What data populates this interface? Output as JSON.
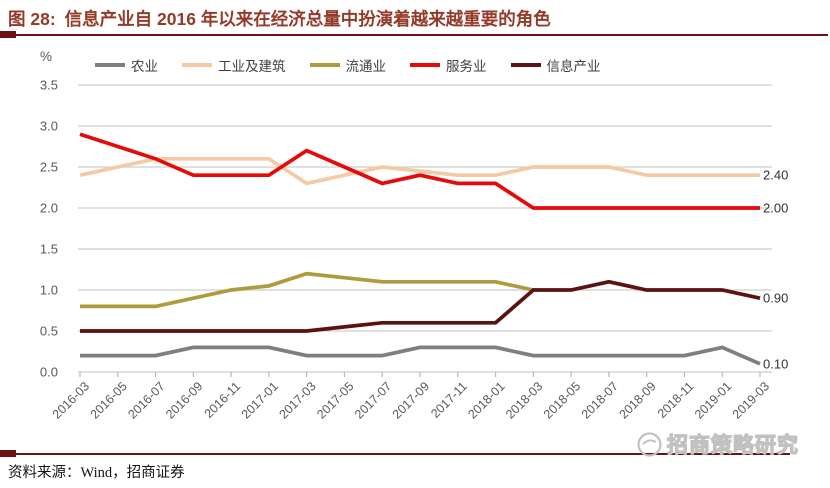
{
  "header": {
    "figure_label": "图 28:",
    "title": "信息产业自 2016 年以来在经济总量中扮演着越来越重要的角色"
  },
  "chart_data": {
    "type": "line",
    "title": "信息产业自 2016 年以来在经济总量中扮演着越来越重要的角色",
    "unit_label": "%",
    "categories": [
      "2016-03",
      "2016-05",
      "2016-07",
      "2016-09",
      "2016-11",
      "2017-01",
      "2017-03",
      "2017-05",
      "2017-07",
      "2017-09",
      "2017-11",
      "2018-01",
      "2018-03",
      "2018-05",
      "2018-07",
      "2018-09",
      "2018-11",
      "2019-01",
      "2019-03"
    ],
    "ylim": [
      0,
      3.5
    ],
    "ytick_step": 0.5,
    "grid": true,
    "legend_position": "top",
    "series": [
      {
        "name": "农业",
        "color": "#7F7F7F",
        "values": [
          0.2,
          0.2,
          0.2,
          0.3,
          0.3,
          0.3,
          0.2,
          0.2,
          0.2,
          0.3,
          0.3,
          0.3,
          0.2,
          0.2,
          0.2,
          0.2,
          0.2,
          0.3,
          0.1
        ],
        "end_label": "0.10"
      },
      {
        "name": "工业及建筑",
        "color": "#F5C9A3",
        "values": [
          2.4,
          2.5,
          2.6,
          2.6,
          2.6,
          2.6,
          2.3,
          2.4,
          2.5,
          2.45,
          2.4,
          2.4,
          2.5,
          2.5,
          2.5,
          2.4,
          2.4,
          2.4,
          2.4
        ],
        "end_label": "2.40"
      },
      {
        "name": "流通业",
        "color": "#B09A3E",
        "values": [
          0.8,
          0.8,
          0.8,
          0.9,
          1.0,
          1.05,
          1.2,
          1.15,
          1.1,
          1.1,
          1.1,
          1.1,
          1.0
        ],
        "end_label": null
      },
      {
        "name": "服务业",
        "color": "#E60A0A",
        "values": [
          2.9,
          2.75,
          2.6,
          2.4,
          2.4,
          2.4,
          2.7,
          2.5,
          2.3,
          2.4,
          2.3,
          2.3,
          2.0,
          2.0,
          2.0,
          2.0,
          2.0,
          2.0,
          2.0
        ],
        "end_label": "2.00"
      },
      {
        "name": "信息产业",
        "color": "#5C1211",
        "values": [
          0.5,
          0.5,
          0.5,
          0.5,
          0.5,
          0.5,
          0.5,
          0.55,
          0.6,
          0.6,
          0.6,
          0.6,
          1.0,
          1.0,
          1.1,
          1.0,
          1.0,
          1.0,
          0.9
        ],
        "end_label": "0.90"
      }
    ],
    "colors": {
      "title_red": "#943A29",
      "rule_dark_red": "#6E1112",
      "gridline": "#CDCDCD",
      "axis_text": "#595959",
      "end_label_text": "#30323A",
      "watermark_gray": "#C2C1BF"
    }
  },
  "footer": {
    "source": "资料来源：Wind，招商证券",
    "watermark": "招商策略研究"
  }
}
